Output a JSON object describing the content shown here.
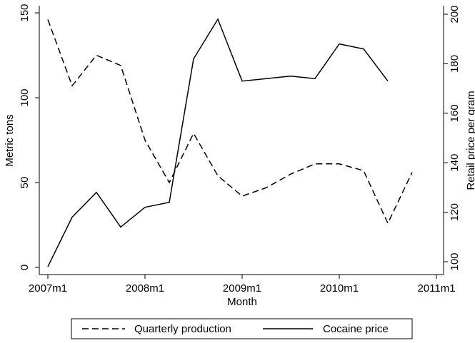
{
  "chart_data": {
    "type": "line",
    "x_label": "Month",
    "y_label": "Metric tons",
    "y2_label": "Retail price per gram",
    "x": [
      "2007m1",
      "2007m4",
      "2007m7",
      "2007m10",
      "2008m1",
      "2008m4",
      "2008m7",
      "2008m10",
      "2009m1",
      "2009m4",
      "2009m7",
      "2009m10",
      "2010m1",
      "2010m4",
      "2010m7",
      "2010m10"
    ],
    "xlim": [
      "2007m1",
      "2011m1"
    ],
    "xticks": [
      "2007m1",
      "2008m1",
      "2009m1",
      "2010m1",
      "2011m1"
    ],
    "ylim": [
      0,
      150
    ],
    "yticks": [
      0,
      50,
      100,
      150
    ],
    "y2lim": [
      98,
      198
    ],
    "y2ticks": [
      100,
      120,
      140,
      160,
      180,
      200
    ],
    "series": [
      {
        "name": "Quarterly production",
        "color": "#000000",
        "dash": "dashed",
        "values": [
          146,
          107,
          125,
          119,
          75,
          50,
          79,
          54,
          42,
          47,
          55,
          61,
          61,
          57,
          26,
          56
        ]
      },
      {
        "name": "Cocaine price",
        "color": "#000000",
        "dash": "solid",
        "axis": "y2",
        "values": [
          98,
          118,
          128,
          114,
          122,
          124,
          182,
          198,
          173,
          174,
          175,
          174,
          188,
          186,
          173,
          null
        ]
      }
    ],
    "legend": "bottom"
  }
}
